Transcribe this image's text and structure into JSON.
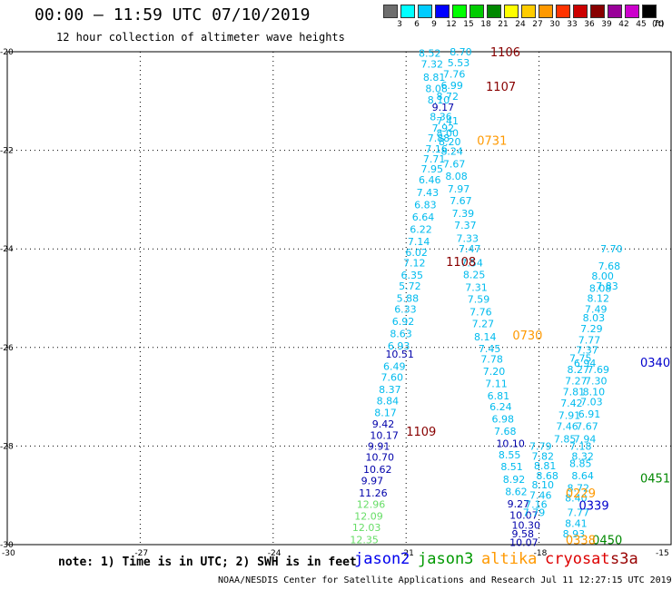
{
  "title": "00:00 – 11:59 UTC 07/10/2019",
  "subtitle": "12 hour collection of altimeter wave heights",
  "scale": {
    "unit": "(ft)",
    "colors": [
      "#6e6e6e",
      "#00ffff",
      "#00ccff",
      "#0000ff",
      "#00ff00",
      "#00cc00",
      "#008800",
      "#ffff00",
      "#ffcc00",
      "#ff9900",
      "#ff3300",
      "#cc0000",
      "#880000",
      "#990099",
      "#cc00cc",
      "#000000"
    ],
    "labels": [
      "3",
      "6",
      "9",
      "12",
      "15",
      "18",
      "21",
      "24",
      "27",
      "30",
      "33",
      "36",
      "39",
      "42",
      "45",
      "70"
    ]
  },
  "map_extent": {
    "lon_min": -30,
    "lon_max": -15,
    "lat_min": -30,
    "lat_max": -20
  },
  "lat_ticks": [
    "-20",
    "-22",
    "-24",
    "-26",
    "-28",
    "-30"
  ],
  "lon_ticks": [
    "-30",
    "-27",
    "-24",
    "-21",
    "-18",
    "-15"
  ],
  "pass_times": [
    {
      "text": "1106",
      "lon": -19.1,
      "lat": -20.0,
      "color": "#880000"
    },
    {
      "text": "1107",
      "lon": -19.2,
      "lat": -20.7,
      "color": "#880000"
    },
    {
      "text": "0731",
      "lon": -19.4,
      "lat": -21.8,
      "color": "#ff9900"
    },
    {
      "text": "1108",
      "lon": -20.1,
      "lat": -24.25,
      "color": "#880000"
    },
    {
      "text": "0730",
      "lon": -18.6,
      "lat": -25.75,
      "color": "#ff9900"
    },
    {
      "text": "1109",
      "lon": -21.0,
      "lat": -27.7,
      "color": "#880000"
    },
    {
      "text": "0340",
      "lon": -15.6,
      "lat": -26.3,
      "color": "#0000cc"
    },
    {
      "text": "0451",
      "lon": -15.7,
      "lat": -28.65,
      "color": "#008800"
    },
    {
      "text": "0229",
      "lon": -17.4,
      "lat": -28.95,
      "color": "#ff9900"
    },
    {
      "text": "0339",
      "lon": -17.1,
      "lat": -29.2,
      "color": "#0000cc"
    },
    {
      "text": "0450",
      "lon": -16.8,
      "lat": -29.9,
      "color": "#008800"
    },
    {
      "text": "0338",
      "lon": -17.4,
      "lat": -29.9,
      "color": "#ff9900"
    }
  ],
  "swh_points": [
    {
      "v": "8.52",
      "lon": -20.45,
      "lat": -20.03,
      "c": "#00bbee"
    },
    {
      "v": "8.70",
      "lon": -19.75,
      "lat": -20.0,
      "c": "#00bbee"
    },
    {
      "v": "7.32",
      "lon": -20.4,
      "lat": -20.25,
      "c": "#00bbee"
    },
    {
      "v": "5.53",
      "lon": -19.8,
      "lat": -20.22,
      "c": "#00bbee"
    },
    {
      "v": "8.81",
      "lon": -20.35,
      "lat": -20.52,
      "c": "#00bbee"
    },
    {
      "v": "7.76",
      "lon": -19.9,
      "lat": -20.45,
      "c": "#00bbee"
    },
    {
      "v": "8.08",
      "lon": -20.3,
      "lat": -20.75,
      "c": "#00bbee"
    },
    {
      "v": "6.99",
      "lon": -19.95,
      "lat": -20.68,
      "c": "#00bbee"
    },
    {
      "v": "8.10",
      "lon": -20.25,
      "lat": -20.98,
      "c": "#00bbee"
    },
    {
      "v": "8.72",
      "lon": -20.05,
      "lat": -20.9,
      "c": "#00bbee"
    },
    {
      "v": "9.17",
      "lon": -20.15,
      "lat": -21.12,
      "c": "#0000aa"
    },
    {
      "v": "8.36",
      "lon": -20.2,
      "lat": -21.32,
      "c": "#00bbee"
    },
    {
      "v": "7.41",
      "lon": -20.05,
      "lat": -21.4,
      "c": "#00bbee"
    },
    {
      "v": "7.92",
      "lon": -20.15,
      "lat": -21.55,
      "c": "#00bbee"
    },
    {
      "v": "8.00",
      "lon": -20.05,
      "lat": -21.65,
      "c": "#00bbee"
    },
    {
      "v": "7.88",
      "lon": -20.25,
      "lat": -21.75,
      "c": "#00bbee"
    },
    {
      "v": "8.20",
      "lon": -20.0,
      "lat": -21.82,
      "c": "#00bbee"
    },
    {
      "v": "7.16",
      "lon": -20.3,
      "lat": -21.97,
      "c": "#00bbee"
    },
    {
      "v": "8.24",
      "lon": -19.95,
      "lat": -22.02,
      "c": "#00bbee"
    },
    {
      "v": "7.71",
      "lon": -20.35,
      "lat": -22.17,
      "c": "#00bbee"
    },
    {
      "v": "7.67",
      "lon": -19.9,
      "lat": -22.27,
      "c": "#00bbee"
    },
    {
      "v": "7.95",
      "lon": -20.4,
      "lat": -22.38,
      "c": "#00bbee"
    },
    {
      "v": "8.08",
      "lon": -19.85,
      "lat": -22.52,
      "c": "#00bbee"
    },
    {
      "v": "6.46",
      "lon": -20.45,
      "lat": -22.6,
      "c": "#00bbee"
    },
    {
      "v": "7.97",
      "lon": -19.8,
      "lat": -22.78,
      "c": "#00bbee"
    },
    {
      "v": "7.43",
      "lon": -20.5,
      "lat": -22.85,
      "c": "#00bbee"
    },
    {
      "v": "7.67",
      "lon": -19.75,
      "lat": -23.02,
      "c": "#00bbee"
    },
    {
      "v": "6.83",
      "lon": -20.55,
      "lat": -23.1,
      "c": "#00bbee"
    },
    {
      "v": "7.39",
      "lon": -19.7,
      "lat": -23.28,
      "c": "#00bbee"
    },
    {
      "v": "6.64",
      "lon": -20.6,
      "lat": -23.35,
      "c": "#00bbee"
    },
    {
      "v": "7.37",
      "lon": -19.65,
      "lat": -23.52,
      "c": "#00bbee"
    },
    {
      "v": "6.22",
      "lon": -20.65,
      "lat": -23.6,
      "c": "#00bbee"
    },
    {
      "v": "7.33",
      "lon": -19.6,
      "lat": -23.78,
      "c": "#00bbee"
    },
    {
      "v": "7.14",
      "lon": -20.7,
      "lat": -23.85,
      "c": "#00bbee"
    },
    {
      "v": "7.47",
      "lon": -19.55,
      "lat": -24.0,
      "c": "#00bbee"
    },
    {
      "v": "6.02",
      "lon": -20.75,
      "lat": -24.07,
      "c": "#00bbee"
    },
    {
      "v": "7.54",
      "lon": -19.5,
      "lat": -24.28,
      "c": "#00bbee"
    },
    {
      "v": "7.12",
      "lon": -20.8,
      "lat": -24.28,
      "c": "#00bbee"
    },
    {
      "v": "8.25",
      "lon": -19.45,
      "lat": -24.52,
      "c": "#00bbee"
    },
    {
      "v": "6.35",
      "lon": -20.85,
      "lat": -24.53,
      "c": "#00bbee"
    },
    {
      "v": "7.31",
      "lon": -19.4,
      "lat": -24.78,
      "c": "#00bbee"
    },
    {
      "v": "5.72",
      "lon": -20.9,
      "lat": -24.75,
      "c": "#00bbee"
    },
    {
      "v": "7.59",
      "lon": -19.35,
      "lat": -25.02,
      "c": "#00bbee"
    },
    {
      "v": "5.88",
      "lon": -20.95,
      "lat": -25.0,
      "c": "#00bbee"
    },
    {
      "v": "7.76",
      "lon": -19.3,
      "lat": -25.28,
      "c": "#00bbee"
    },
    {
      "v": "6.33",
      "lon": -21.0,
      "lat": -25.22,
      "c": "#00bbee"
    },
    {
      "v": "7.27",
      "lon": -19.25,
      "lat": -25.52,
      "c": "#00bbee"
    },
    {
      "v": "6.92",
      "lon": -21.05,
      "lat": -25.47,
      "c": "#00bbee"
    },
    {
      "v": "8.14",
      "lon": -19.2,
      "lat": -25.78,
      "c": "#00bbee"
    },
    {
      "v": "8.63",
      "lon": -21.1,
      "lat": -25.72,
      "c": "#00bbee"
    },
    {
      "v": "7.45",
      "lon": -19.1,
      "lat": -26.02,
      "c": "#00bbee"
    },
    {
      "v": "6.93",
      "lon": -21.15,
      "lat": -25.97,
      "c": "#00bbee"
    },
    {
      "v": "7.78",
      "lon": -19.05,
      "lat": -26.23,
      "c": "#00bbee"
    },
    {
      "v": "10.51",
      "lon": -21.2,
      "lat": -26.13,
      "c": "#0000aa"
    },
    {
      "v": "7.20",
      "lon": -19.0,
      "lat": -26.48,
      "c": "#00bbee"
    },
    {
      "v": "6.49",
      "lon": -21.25,
      "lat": -26.38,
      "c": "#00bbee"
    },
    {
      "v": "7.11",
      "lon": -18.95,
      "lat": -26.73,
      "c": "#00bbee"
    },
    {
      "v": "7.60",
      "lon": -21.3,
      "lat": -26.6,
      "c": "#00bbee"
    },
    {
      "v": "6.81",
      "lon": -18.9,
      "lat": -26.98,
      "c": "#00bbee"
    },
    {
      "v": "8.37",
      "lon": -21.35,
      "lat": -26.85,
      "c": "#00bbee"
    },
    {
      "v": "6.24",
      "lon": -18.85,
      "lat": -27.2,
      "c": "#00bbee"
    },
    {
      "v": "8.84",
      "lon": -21.4,
      "lat": -27.08,
      "c": "#00bbee"
    },
    {
      "v": "6.98",
      "lon": -18.8,
      "lat": -27.45,
      "c": "#00bbee"
    },
    {
      "v": "8.17",
      "lon": -21.45,
      "lat": -27.32,
      "c": "#00bbee"
    },
    {
      "v": "7.68",
      "lon": -18.75,
      "lat": -27.7,
      "c": "#00bbee"
    },
    {
      "v": "9.42",
      "lon": -21.5,
      "lat": -27.55,
      "c": "#0000aa"
    },
    {
      "v": "10.10",
      "lon": -18.7,
      "lat": -27.95,
      "c": "#0000aa"
    },
    {
      "v": "10.17",
      "lon": -21.55,
      "lat": -27.78,
      "c": "#0000aa"
    },
    {
      "v": "8.55",
      "lon": -18.65,
      "lat": -28.18,
      "c": "#00bbee"
    },
    {
      "v": "9.91",
      "lon": -21.6,
      "lat": -28.0,
      "c": "#0000aa"
    },
    {
      "v": "8.51",
      "lon": -18.6,
      "lat": -28.42,
      "c": "#00bbee"
    },
    {
      "v": "10.70",
      "lon": -21.65,
      "lat": -28.22,
      "c": "#0000aa"
    },
    {
      "v": "8.92",
      "lon": -18.55,
      "lat": -28.67,
      "c": "#00bbee"
    },
    {
      "v": "10.62",
      "lon": -21.7,
      "lat": -28.47,
      "c": "#0000aa"
    },
    {
      "v": "8.62",
      "lon": -18.5,
      "lat": -28.92,
      "c": "#00bbee"
    },
    {
      "v": "9.97",
      "lon": -21.75,
      "lat": -28.7,
      "c": "#0000aa"
    },
    {
      "v": "9.27",
      "lon": -18.45,
      "lat": -29.17,
      "c": "#0000aa"
    },
    {
      "v": "11.26",
      "lon": -21.8,
      "lat": -28.95,
      "c": "#0000aa"
    },
    {
      "v": "10.07",
      "lon": -18.4,
      "lat": -29.4,
      "c": "#0000aa"
    },
    {
      "v": "12.96",
      "lon": -21.85,
      "lat": -29.18,
      "c": "#66dd66"
    },
    {
      "v": "10.30",
      "lon": -18.35,
      "lat": -29.6,
      "c": "#0000aa"
    },
    {
      "v": "12.09",
      "lon": -21.9,
      "lat": -29.42,
      "c": "#66dd66"
    },
    {
      "v": "9.58",
      "lon": -18.35,
      "lat": -29.78,
      "c": "#0000aa"
    },
    {
      "v": "12.03",
      "lon": -21.95,
      "lat": -29.65,
      "c": "#66dd66"
    },
    {
      "v": "10.07",
      "lon": -18.4,
      "lat": -29.95,
      "c": "#0000aa"
    },
    {
      "v": "12.35",
      "lon": -22.0,
      "lat": -29.9,
      "c": "#66dd66"
    },
    {
      "v": "7.79",
      "lon": -17.95,
      "lat": -28.0,
      "c": "#00bbee"
    },
    {
      "v": "7.82",
      "lon": -17.9,
      "lat": -28.2,
      "c": "#00bbee"
    },
    {
      "v": "8.81",
      "lon": -17.85,
      "lat": -28.4,
      "c": "#00bbee"
    },
    {
      "v": "8.68",
      "lon": -17.8,
      "lat": -28.6,
      "c": "#00bbee"
    },
    {
      "v": "8.10",
      "lon": -17.9,
      "lat": -28.78,
      "c": "#00bbee"
    },
    {
      "v": "7.46",
      "lon": -17.95,
      "lat": -29.0,
      "c": "#00bbee"
    },
    {
      "v": "7.16",
      "lon": -18.05,
      "lat": -29.18,
      "c": "#00bbee"
    },
    {
      "v": "7.79",
      "lon": -18.1,
      "lat": -29.35,
      "c": "#00bbee"
    },
    {
      "v": "7.77",
      "lon": -17.1,
      "lat": -29.35,
      "c": "#00bbee"
    },
    {
      "v": "8.41",
      "lon": -17.15,
      "lat": -29.57,
      "c": "#00bbee"
    },
    {
      "v": "8.93",
      "lon": -17.2,
      "lat": -29.78,
      "c": "#00bbee"
    },
    {
      "v": "7.85",
      "lon": -17.4,
      "lat": -27.85,
      "c": "#00bbee"
    },
    {
      "v": "7.46",
      "lon": -17.35,
      "lat": -27.6,
      "c": "#00bbee"
    },
    {
      "v": "7.91",
      "lon": -17.3,
      "lat": -27.38,
      "c": "#00bbee"
    },
    {
      "v": "7.42",
      "lon": -17.25,
      "lat": -27.13,
      "c": "#00bbee"
    },
    {
      "v": "7.81",
      "lon": -17.2,
      "lat": -26.9,
      "c": "#00bbee"
    },
    {
      "v": "7.27",
      "lon": -17.15,
      "lat": -26.68,
      "c": "#00bbee"
    },
    {
      "v": "8.27",
      "lon": -17.1,
      "lat": -26.45,
      "c": "#00bbee"
    },
    {
      "v": "7.75",
      "lon": -17.05,
      "lat": -26.22,
      "c": "#00bbee"
    },
    {
      "v": "6.94",
      "lon": -16.95,
      "lat": -26.32,
      "c": "#00bbee"
    },
    {
      "v": "7.37",
      "lon": -16.9,
      "lat": -26.05,
      "c": "#00bbee"
    },
    {
      "v": "7.77",
      "lon": -16.85,
      "lat": -25.85,
      "c": "#00bbee"
    },
    {
      "v": "7.29",
      "lon": -16.8,
      "lat": -25.62,
      "c": "#00bbee"
    },
    {
      "v": "8.03",
      "lon": -16.75,
      "lat": -25.4,
      "c": "#00bbee"
    },
    {
      "v": "7.49",
      "lon": -16.7,
      "lat": -25.22,
      "c": "#00bbee"
    },
    {
      "v": "8.12",
      "lon": -16.65,
      "lat": -25.0,
      "c": "#00bbee"
    },
    {
      "v": "8.08",
      "lon": -16.6,
      "lat": -24.8,
      "c": "#00bbee"
    },
    {
      "v": "8.00",
      "lon": -16.55,
      "lat": -24.55,
      "c": "#00bbee"
    },
    {
      "v": "7.83",
      "lon": -16.45,
      "lat": -24.75,
      "c": "#00bbee"
    },
    {
      "v": "7.68",
      "lon": -16.4,
      "lat": -24.35,
      "c": "#00bbee"
    },
    {
      "v": "7.70",
      "lon": -16.35,
      "lat": -24.0,
      "c": "#00bbee"
    },
    {
      "v": "8.64",
      "lon": -17.0,
      "lat": -28.6,
      "c": "#00bbee"
    },
    {
      "v": "8.85",
      "lon": -17.05,
      "lat": -28.35,
      "c": "#00bbee"
    },
    {
      "v": "8.32",
      "lon": -17.0,
      "lat": -28.2,
      "c": "#00bbee"
    },
    {
      "v": "7.18",
      "lon": -17.05,
      "lat": -28.0,
      "c": "#00bbee"
    },
    {
      "v": "7.94",
      "lon": -16.95,
      "lat": -27.85,
      "c": "#00bbee"
    },
    {
      "v": "7.67",
      "lon": -16.9,
      "lat": -27.6,
      "c": "#00bbee"
    },
    {
      "v": "6.91",
      "lon": -16.85,
      "lat": -27.35,
      "c": "#00bbee"
    },
    {
      "v": "7.03",
      "lon": -16.8,
      "lat": -27.1,
      "c": "#00bbee"
    },
    {
      "v": "8.10",
      "lon": -16.75,
      "lat": -26.9,
      "c": "#00bbee"
    },
    {
      "v": "7.30",
      "lon": -16.7,
      "lat": -26.68,
      "c": "#00bbee"
    },
    {
      "v": "7.69",
      "lon": -16.65,
      "lat": -26.45,
      "c": "#00bbee"
    },
    {
      "v": "8.72",
      "lon": -17.1,
      "lat": -28.85,
      "c": "#00bbee"
    },
    {
      "v": "8.40",
      "lon": -17.15,
      "lat": -29.05,
      "c": "#00bbee"
    }
  ],
  "note": "note: 1) Time is in UTC; 2) SWH is in feet",
  "legend": [
    {
      "label": "jason2",
      "color": "#0000ee"
    },
    {
      "label": "jason3",
      "color": "#009900"
    },
    {
      "label": "altika",
      "color": "#ff9900"
    },
    {
      "label": "cryosat",
      "color": "#dd0000"
    },
    {
      "label": "s3a",
      "color": "#990000"
    }
  ],
  "footer": "NOAA/NESDIS Center for Satellite Applications and Research  Jul 11 12:27:15 UTC 2019"
}
